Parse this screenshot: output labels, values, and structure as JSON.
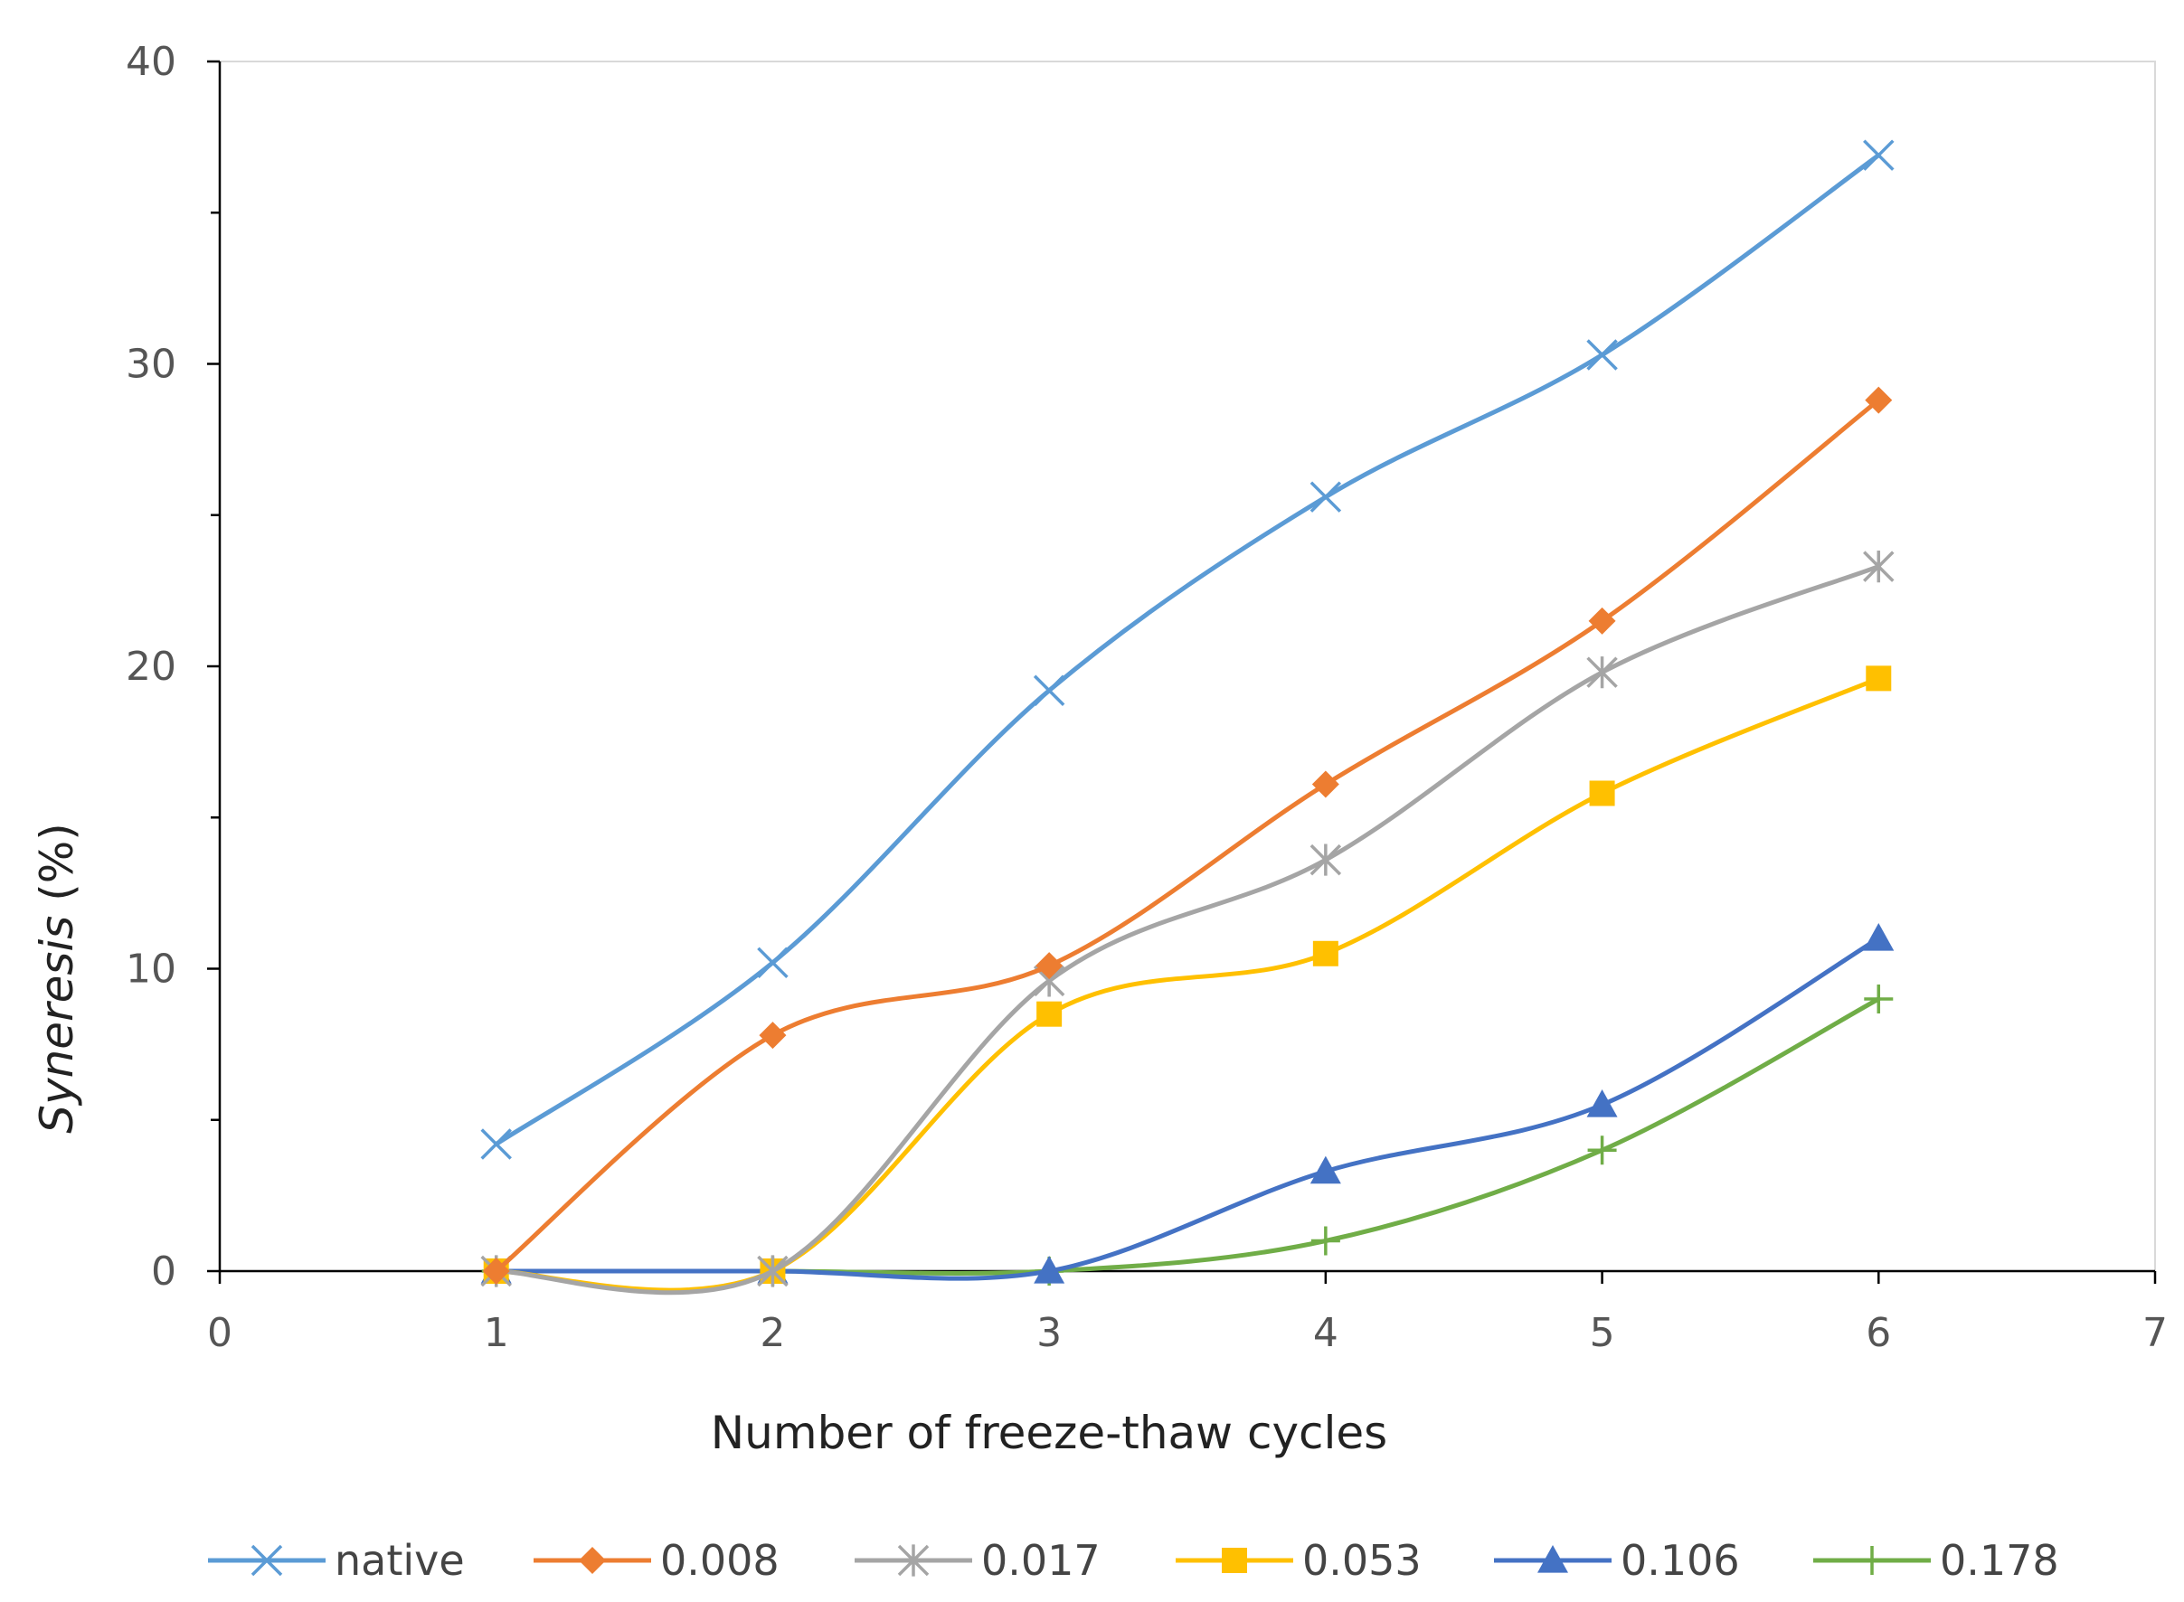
{
  "chart_data": {
    "type": "line",
    "title": "",
    "xlabel": "Number of freeze-thaw cycles",
    "ylabel": "Syneresis (%)",
    "ylabel_italic_part": "Syneresis",
    "ylabel_unit_part": " (%)",
    "xlim": [
      0,
      7
    ],
    "ylim": [
      0,
      40
    ],
    "x_ticks": [
      0,
      1,
      2,
      3,
      4,
      5,
      6,
      7
    ],
    "y_ticks": [
      0,
      10,
      20,
      30,
      40
    ],
    "grid": false,
    "legend_position": "bottom",
    "x": [
      1,
      2,
      3,
      4,
      5,
      6
    ],
    "series": [
      {
        "name": "native",
        "color": "#5B9BD5",
        "marker": "x",
        "values": [
          4.2,
          10.2,
          19.2,
          25.6,
          30.3,
          36.9
        ]
      },
      {
        "name": "0.008",
        "color": "#ED7D31",
        "marker": "diamond",
        "values": [
          0,
          7.8,
          10.1,
          16.1,
          21.5,
          28.8
        ]
      },
      {
        "name": "0.017",
        "color": "#A5A5A5",
        "marker": "star",
        "values": [
          0,
          0,
          9.6,
          13.6,
          19.8,
          23.3
        ]
      },
      {
        "name": "0.053",
        "color": "#FFC000",
        "marker": "square",
        "values": [
          0,
          0,
          8.5,
          10.5,
          15.8,
          19.6
        ]
      },
      {
        "name": "0.106",
        "color": "#4472C4",
        "marker": "triangle",
        "values": [
          0,
          0,
          0,
          3.3,
          5.5,
          11.0
        ]
      },
      {
        "name": "0.178",
        "color": "#70AD47",
        "marker": "plus",
        "values": [
          0,
          0,
          0,
          1.0,
          4.0,
          9.0
        ]
      }
    ]
  }
}
